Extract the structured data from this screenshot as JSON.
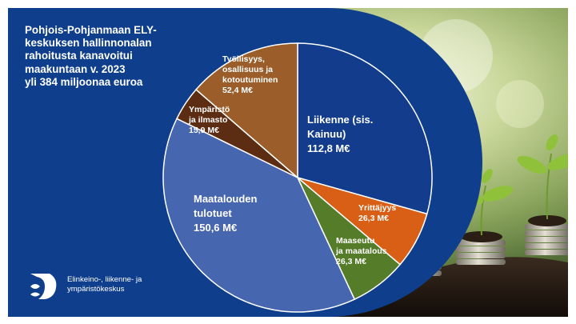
{
  "title_lines": [
    "Pohjois-Pohjanmaan ELY-",
    "keskuksen hallinnonalan",
    "rahoitusta kanavoitui",
    "maakuntaan v. 2023",
    "yli 384 miljoonaa euroa"
  ],
  "logo": {
    "icon": "ely-logo-icon",
    "lines": [
      "Elinkeino-, liikenne- ja",
      "ympäristökeskus"
    ]
  },
  "colors": {
    "background_blue": "#0f3f8c",
    "liikenne": "#133d8c",
    "yrittajyys": "#d85f15",
    "maaseutu": "#557c29",
    "maatalouden_tulotuet": "#4766b0",
    "ymparisto": "#5c2d13",
    "tyollisyys": "#9b5e2a"
  },
  "chart_data": {
    "type": "pie",
    "unit": "M€",
    "start_angle_deg": 0,
    "slices": [
      {
        "key": "liikenne",
        "lines": [
          "Liikenne (sis.",
          "Kainuu)",
          "112,8 M€"
        ],
        "value": 112.8,
        "color": "#133d8c",
        "label_color": "#ffffff"
      },
      {
        "key": "yrittajyys",
        "lines": [
          "Yrittäjyys",
          "26,3 M€"
        ],
        "value": 26.3,
        "color": "#d85f15",
        "label_color": "#ffffff"
      },
      {
        "key": "maaseutu",
        "lines": [
          "Maaseutu",
          "ja maatalous",
          "26,3 M€"
        ],
        "value": 26.3,
        "color": "#557c29",
        "label_color": "#ffffff"
      },
      {
        "key": "maatalouden-tulotuet",
        "lines": [
          "Maatalouden",
          "tulotuet",
          "150,6 M€"
        ],
        "value": 150.6,
        "color": "#4766b0",
        "label_color": "#ffffff"
      },
      {
        "key": "ymparisto",
        "lines": [
          "Ympäristö",
          "ja ilmasto",
          "15,9 M€"
        ],
        "value": 15.9,
        "color": "#5c2d13",
        "label_color": "#ffffff"
      },
      {
        "key": "tyollisyys",
        "lines": [
          "Työllisyys,",
          "osallisuus ja",
          "kotoutuminen",
          "52,4 M€"
        ],
        "value": 52.4,
        "color": "#9b5e2a",
        "label_color": "#ffffff"
      }
    ]
  }
}
